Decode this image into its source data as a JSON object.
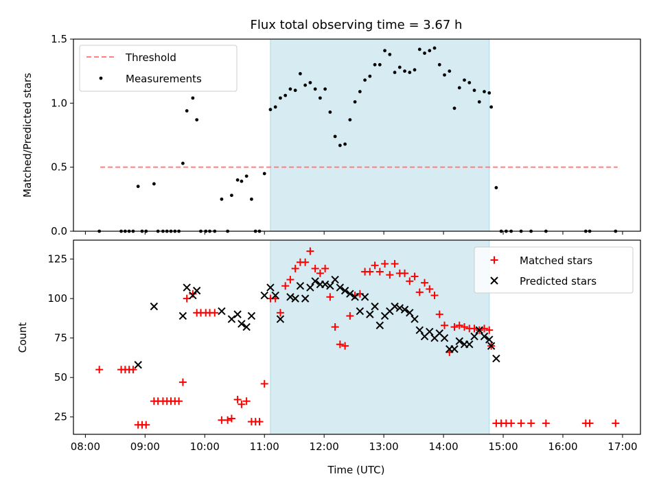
{
  "colors": {
    "shade": "#add8e6",
    "threshold": "#ff7f7f",
    "measurement": "#000000",
    "matched": "#ff0000",
    "predicted": "#000000"
  },
  "chart_data": [
    {
      "type": "scatter",
      "title": "Flux total observing time = 3.67 h",
      "xlabel": "",
      "ylabel": "Matched/Predicted stars",
      "xlim": [
        "07:48",
        "17:18"
      ],
      "ylim": [
        0,
        1.5
      ],
      "yticks": [
        0,
        0.5,
        1.0,
        1.5
      ],
      "ytick_labels": [
        "0.0",
        "0.5",
        "1.0",
        "1.5"
      ],
      "xticks": [
        "08:00",
        "09:00",
        "10:00",
        "11:00",
        "12:00",
        "13:00",
        "14:00",
        "15:00",
        "16:00",
        "17:00"
      ],
      "shaded_span": [
        "11:06",
        "14:46"
      ],
      "legend": {
        "placement": "top-left",
        "entries": [
          "Threshold",
          "Measurements"
        ]
      },
      "threshold": {
        "name": "Threshold",
        "value": 0.5,
        "x_start": "08:15",
        "x_end": "16:55",
        "style": "dashed"
      },
      "series": [
        {
          "name": "Measurements",
          "marker": "dot",
          "points": [
            [
              "08:14",
              0.0
            ],
            [
              "08:36",
              0.0
            ],
            [
              "08:40",
              0.0
            ],
            [
              "08:44",
              0.0
            ],
            [
              "08:48",
              0.0
            ],
            [
              "08:53",
              0.35
            ],
            [
              "08:57",
              0.0
            ],
            [
              "09:01",
              0.0
            ],
            [
              "09:09",
              0.37
            ],
            [
              "09:13",
              0.0
            ],
            [
              "09:18",
              0.0
            ],
            [
              "09:22",
              0.0
            ],
            [
              "09:26",
              0.0
            ],
            [
              "09:30",
              0.0
            ],
            [
              "09:34",
              0.0
            ],
            [
              "09:38",
              0.53
            ],
            [
              "09:42",
              0.94
            ],
            [
              "09:48",
              1.04
            ],
            [
              "09:52",
              0.87
            ],
            [
              "09:56",
              0.0
            ],
            [
              "10:01",
              0.0
            ],
            [
              "10:05",
              0.0
            ],
            [
              "10:10",
              0.0
            ],
            [
              "10:17",
              0.25
            ],
            [
              "10:23",
              0.0
            ],
            [
              "10:27",
              0.28
            ],
            [
              "10:33",
              0.4
            ],
            [
              "10:37",
              0.39
            ],
            [
              "10:42",
              0.43
            ],
            [
              "10:47",
              0.25
            ],
            [
              "10:51",
              0.0
            ],
            [
              "10:55",
              0.0
            ],
            [
              "11:00",
              0.45
            ],
            [
              "11:06",
              0.95
            ],
            [
              "11:11",
              0.97
            ],
            [
              "11:16",
              1.04
            ],
            [
              "11:21",
              1.06
            ],
            [
              "11:26",
              1.11
            ],
            [
              "11:31",
              1.1
            ],
            [
              "11:36",
              1.23
            ],
            [
              "11:41",
              1.14
            ],
            [
              "11:46",
              1.16
            ],
            [
              "11:51",
              1.11
            ],
            [
              "11:56",
              1.04
            ],
            [
              "12:01",
              1.11
            ],
            [
              "12:06",
              0.93
            ],
            [
              "12:11",
              0.74
            ],
            [
              "12:16",
              0.67
            ],
            [
              "12:21",
              0.68
            ],
            [
              "12:26",
              0.87
            ],
            [
              "12:31",
              1.01
            ],
            [
              "12:36",
              1.09
            ],
            [
              "12:41",
              1.18
            ],
            [
              "12:46",
              1.21
            ],
            [
              "12:51",
              1.3
            ],
            [
              "12:56",
              1.3
            ],
            [
              "13:01",
              1.41
            ],
            [
              "13:06",
              1.38
            ],
            [
              "13:11",
              1.24
            ],
            [
              "13:16",
              1.28
            ],
            [
              "13:21",
              1.25
            ],
            [
              "13:26",
              1.24
            ],
            [
              "13:31",
              1.26
            ],
            [
              "13:36",
              1.42
            ],
            [
              "13:41",
              1.39
            ],
            [
              "13:46",
              1.41
            ],
            [
              "13:51",
              1.43
            ],
            [
              "13:56",
              1.3
            ],
            [
              "14:01",
              1.22
            ],
            [
              "14:06",
              1.25
            ],
            [
              "14:11",
              0.96
            ],
            [
              "14:16",
              1.12
            ],
            [
              "14:21",
              1.18
            ],
            [
              "14:26",
              1.16
            ],
            [
              "14:31",
              1.1
            ],
            [
              "14:36",
              1.01
            ],
            [
              "14:41",
              1.09
            ],
            [
              "14:46",
              1.08
            ],
            [
              "14:48",
              0.97
            ],
            [
              "14:53",
              0.34
            ],
            [
              "14:58",
              0.0
            ],
            [
              "15:03",
              0.0
            ],
            [
              "15:08",
              0.0
            ],
            [
              "15:18",
              0.0
            ],
            [
              "15:28",
              0.0
            ],
            [
              "15:43",
              0.0
            ],
            [
              "16:23",
              0.0
            ],
            [
              "16:27",
              0.0
            ],
            [
              "16:53",
              0.0
            ]
          ]
        }
      ]
    },
    {
      "type": "scatter",
      "title": "",
      "xlabel": "Time (UTC)",
      "ylabel": "Count",
      "xlim": [
        "07:48",
        "17:18"
      ],
      "ylim": [
        14,
        137
      ],
      "yticks": [
        25,
        50,
        75,
        100,
        125
      ],
      "ytick_labels": [
        "25",
        "50",
        "75",
        "100",
        "125"
      ],
      "xticks": [
        "08:00",
        "09:00",
        "10:00",
        "11:00",
        "12:00",
        "13:00",
        "14:00",
        "15:00",
        "16:00",
        "17:00"
      ],
      "xtick_labels": [
        "08:00",
        "09:00",
        "10:00",
        "11:00",
        "12:00",
        "13:00",
        "14:00",
        "15:00",
        "16:00",
        "17:00"
      ],
      "shaded_span": [
        "11:06",
        "14:46"
      ],
      "legend": {
        "placement": "top-right",
        "entries": [
          "Matched stars",
          "Predicted stars"
        ]
      },
      "series": [
        {
          "name": "Matched stars",
          "marker": "plus",
          "points": [
            [
              "08:14",
              55
            ],
            [
              "08:36",
              55
            ],
            [
              "08:40",
              55
            ],
            [
              "08:44",
              55
            ],
            [
              "08:48",
              55
            ],
            [
              "08:53",
              20
            ],
            [
              "08:57",
              20
            ],
            [
              "09:01",
              20
            ],
            [
              "09:09",
              35
            ],
            [
              "09:13",
              35
            ],
            [
              "09:18",
              35
            ],
            [
              "09:22",
              35
            ],
            [
              "09:26",
              35
            ],
            [
              "09:30",
              35
            ],
            [
              "09:34",
              35
            ],
            [
              "09:38",
              47
            ],
            [
              "09:42",
              100
            ],
            [
              "09:48",
              103
            ],
            [
              "09:52",
              91
            ],
            [
              "09:56",
              91
            ],
            [
              "10:01",
              91
            ],
            [
              "10:05",
              91
            ],
            [
              "10:10",
              91
            ],
            [
              "10:17",
              23
            ],
            [
              "10:23",
              23
            ],
            [
              "10:27",
              24
            ],
            [
              "10:33",
              36
            ],
            [
              "10:37",
              33
            ],
            [
              "10:42",
              35
            ],
            [
              "10:47",
              22
            ],
            [
              "10:51",
              22
            ],
            [
              "10:55",
              22
            ],
            [
              "11:00",
              46
            ],
            [
              "11:06",
              100
            ],
            [
              "11:11",
              100
            ],
            [
              "11:16",
              91
            ],
            [
              "11:21",
              108
            ],
            [
              "11:26",
              112
            ],
            [
              "11:31",
              119
            ],
            [
              "11:36",
              123
            ],
            [
              "11:41",
              123
            ],
            [
              "11:46",
              130
            ],
            [
              "11:51",
              119
            ],
            [
              "11:56",
              116
            ],
            [
              "12:01",
              119
            ],
            [
              "12:06",
              101
            ],
            [
              "12:11",
              82
            ],
            [
              "12:16",
              71
            ],
            [
              "12:21",
              70
            ],
            [
              "12:26",
              89
            ],
            [
              "12:31",
              102
            ],
            [
              "12:36",
              103
            ],
            [
              "12:41",
              117
            ],
            [
              "12:46",
              117
            ],
            [
              "12:51",
              121
            ],
            [
              "12:56",
              117
            ],
            [
              "13:01",
              122
            ],
            [
              "13:06",
              115
            ],
            [
              "13:11",
              122
            ],
            [
              "13:16",
              116
            ],
            [
              "13:21",
              116
            ],
            [
              "13:26",
              111
            ],
            [
              "13:31",
              114
            ],
            [
              "13:36",
              104
            ],
            [
              "13:41",
              110
            ],
            [
              "13:46",
              106
            ],
            [
              "13:51",
              102
            ],
            [
              "13:56",
              90
            ],
            [
              "14:01",
              83
            ],
            [
              "14:06",
              66
            ],
            [
              "14:11",
              82
            ],
            [
              "14:16",
              83
            ],
            [
              "14:21",
              82
            ],
            [
              "14:26",
              81
            ],
            [
              "14:31",
              81
            ],
            [
              "14:36",
              80
            ],
            [
              "14:41",
              81
            ],
            [
              "14:46",
              80
            ],
            [
              "14:48",
              70
            ],
            [
              "14:53",
              21
            ],
            [
              "14:58",
              21
            ],
            [
              "15:03",
              21
            ],
            [
              "15:08",
              21
            ],
            [
              "15:18",
              21
            ],
            [
              "15:28",
              21
            ],
            [
              "15:43",
              21
            ],
            [
              "16:23",
              21
            ],
            [
              "16:27",
              21
            ],
            [
              "16:53",
              21
            ]
          ]
        },
        {
          "name": "Predicted stars",
          "marker": "x",
          "points": [
            [
              "08:53",
              58
            ],
            [
              "09:09",
              95
            ],
            [
              "09:38",
              89
            ],
            [
              "09:42",
              107
            ],
            [
              "09:48",
              102
            ],
            [
              "09:52",
              105
            ],
            [
              "10:17",
              92
            ],
            [
              "10:27",
              87
            ],
            [
              "10:33",
              90
            ],
            [
              "10:37",
              84
            ],
            [
              "10:42",
              82
            ],
            [
              "10:47",
              89
            ],
            [
              "11:00",
              102
            ],
            [
              "11:06",
              107
            ],
            [
              "11:11",
              102
            ],
            [
              "11:16",
              87
            ],
            [
              "11:26",
              101
            ],
            [
              "11:31",
              100
            ],
            [
              "11:36",
              108
            ],
            [
              "11:41",
              100
            ],
            [
              "11:46",
              107
            ],
            [
              "11:51",
              111
            ],
            [
              "11:56",
              109
            ],
            [
              "12:01",
              109
            ],
            [
              "12:06",
              108
            ],
            [
              "12:11",
              112
            ],
            [
              "12:16",
              107
            ],
            [
              "12:21",
              105
            ],
            [
              "12:26",
              103
            ],
            [
              "12:31",
              101
            ],
            [
              "12:36",
              92
            ],
            [
              "12:41",
              101
            ],
            [
              "12:46",
              90
            ],
            [
              "12:51",
              95
            ],
            [
              "12:56",
              83
            ],
            [
              "13:01",
              89
            ],
            [
              "13:06",
              92
            ],
            [
              "13:11",
              95
            ],
            [
              "13:16",
              94
            ],
            [
              "13:21",
              93
            ],
            [
              "13:26",
              91
            ],
            [
              "13:31",
              87
            ],
            [
              "13:36",
              80
            ],
            [
              "13:41",
              76
            ],
            [
              "13:46",
              79
            ],
            [
              "13:51",
              75
            ],
            [
              "13:56",
              78
            ],
            [
              "14:01",
              75
            ],
            [
              "14:06",
              68
            ],
            [
              "14:11",
              68
            ],
            [
              "14:16",
              73
            ],
            [
              "14:21",
              71
            ],
            [
              "14:26",
              71
            ],
            [
              "14:31",
              76
            ],
            [
              "14:36",
              80
            ],
            [
              "14:41",
              76
            ],
            [
              "14:46",
              74
            ],
            [
              "14:48",
              70
            ],
            [
              "14:53",
              62
            ]
          ]
        }
      ]
    }
  ]
}
